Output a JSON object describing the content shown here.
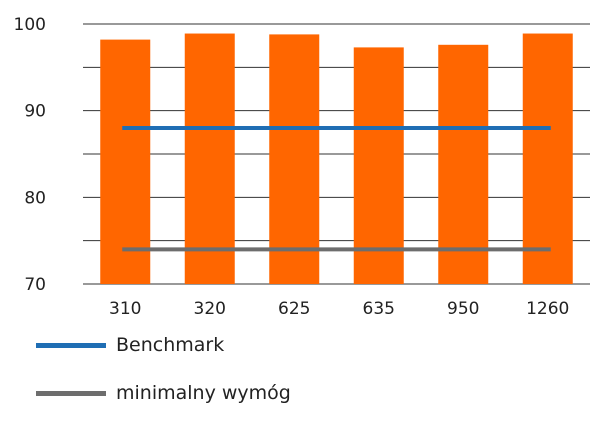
{
  "chart_data": {
    "type": "bar",
    "categories": [
      "310",
      "320",
      "625",
      "635",
      "950",
      "1260"
    ],
    "values": [
      98.2,
      98.9,
      98.8,
      97.3,
      97.6,
      98.9
    ],
    "ylim": [
      70,
      100
    ],
    "yticks": [
      "70",
      "80",
      "90",
      "100"
    ],
    "grid": true,
    "bar_color": "#ff6600",
    "lines": [
      {
        "name": "Benchmark",
        "value": 88,
        "color": "#1f6eb4"
      },
      {
        "name": "minimalny wymóg",
        "value": 74,
        "color": "#6d6d6d"
      }
    ],
    "legend_position": "bottom"
  }
}
